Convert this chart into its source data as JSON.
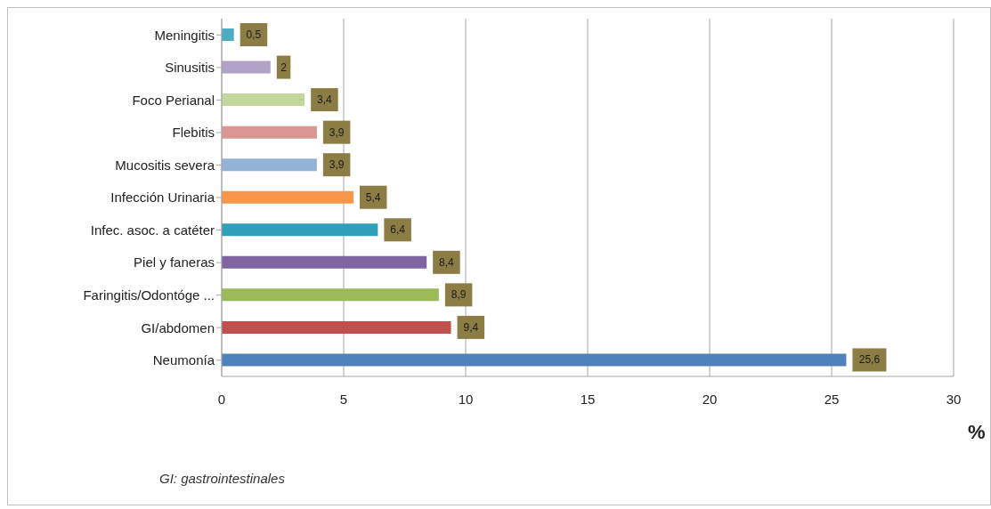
{
  "chart_data": {
    "type": "bar",
    "orientation": "horizontal",
    "categories": [
      "Meningitis",
      "Sinusitis",
      "Foco Perianal",
      "Flebitis",
      "Mucositis severa",
      "Infección Urinaria",
      "Infec. asoc. a catéter",
      "Piel y faneras",
      "Faringitis/Odontóge ...",
      "GI/abdomen",
      "Neumonía"
    ],
    "values": [
      0.5,
      2,
      3.4,
      3.9,
      3.9,
      5.4,
      6.4,
      8.4,
      8.9,
      9.4,
      25.6
    ],
    "value_labels": [
      "0,5",
      "2",
      "3,4",
      "3,9",
      "3,9",
      "5,4",
      "6,4",
      "8,4",
      "8,9",
      "9,4",
      "25,6"
    ],
    "colors": [
      "#4bacc6",
      "#b3a2c7",
      "#c3d69b",
      "#d99694",
      "#95b3d7",
      "#f79646",
      "#31a0bb",
      "#8064a2",
      "#9bbb59",
      "#c0504d",
      "#4f81bd"
    ],
    "xlim": [
      0,
      30
    ],
    "xticks": [
      0,
      5,
      10,
      15,
      20,
      25,
      30
    ],
    "xlabel": "%",
    "grid": "x",
    "annotations": [
      "GI: gastrointestinales"
    ]
  }
}
